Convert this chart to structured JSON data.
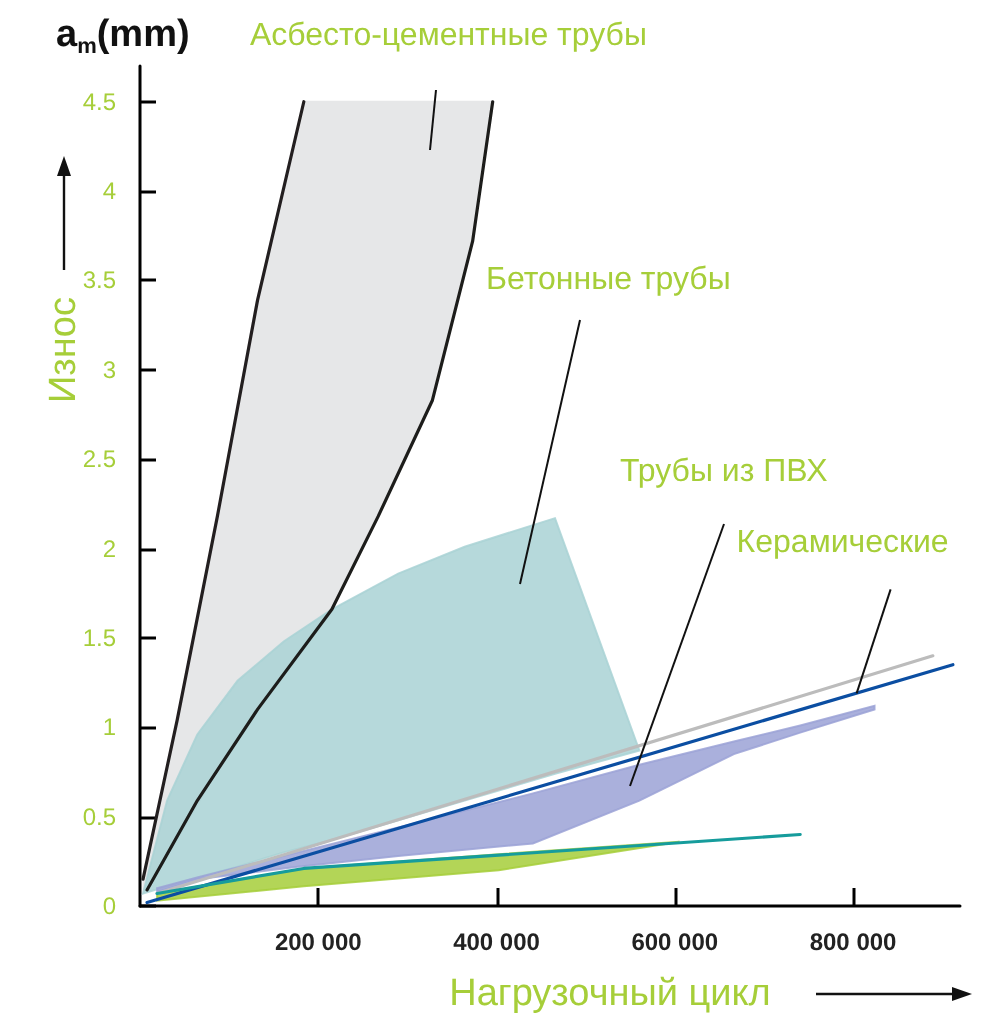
{
  "chart_data": {
    "type": "area",
    "xlabel": "Нагрузочный цикл",
    "ylabel": "Износ",
    "annotations": [
      {
        "text": "a$_{m}$(mm)"
      },
      "Асбесто-цементные трубы",
      "Бетонные трубы",
      "Трубы из ПВХ",
      {
        "text": "Керамические",
        "x": 804000,
        "y": 1.19
      }
    ],
    "xlim": [
      0,
      920000
    ],
    "ylim": [
      0,
      4.7
    ],
    "xticks": [
      {
        "value": 200000,
        "label": "200 000"
      },
      {
        "value": 400000,
        "label": "400 000"
      },
      {
        "value": 600000,
        "label": "600 000"
      },
      {
        "value": 800000,
        "label": "800 000"
      }
    ],
    "yticks": [
      0,
      0.5,
      1,
      1.5,
      2,
      2.5,
      3,
      3.5,
      4,
      4.5
    ],
    "grid": false,
    "series": [
      {
        "color": "#e6e7e8",
        "x": [
          4000,
          40000,
          87000,
          130000,
          184000,
          215000,
          267000,
          328000,
          373000,
          396000
        ],
        "values": [
          null,
          null,
          null,
          null,
          null,
          null,
          null,
          null,
          null,
          null
        ],
        "upper": [
          0.15,
          1.0,
          2.18,
          3.36,
          4.5,
          4.5,
          4.5,
          4.5,
          4.5,
          4.5
        ],
        "lower": [
          0.08,
          0.36,
          0.76,
          1.1,
          1.44,
          1.66,
          2.18,
          2.83,
          3.72,
          4.5
        ]
      },
      {
        "color": "#a9d2d5",
        "x": [
          3400,
          30400,
          64300,
          109400,
          161200,
          215300,
          289700,
          364200,
          465600,
          560300
        ],
        "values": [
          null,
          null,
          null,
          null,
          null,
          null,
          null,
          null,
          null,
          null
        ],
        "upper": [
          0.07,
          0.59,
          0.96,
          1.26,
          1.48,
          1.66,
          1.86,
          2.01,
          2.17,
          0.87
        ],
        "lower": [
          0.07,
          0.11,
          0.16,
          0.22,
          0.3,
          0.37,
          0.48,
          0.59,
          0.74,
          0.87
        ]
      },
      {
        "color": "#9ba2d6",
        "x": [
          19200,
          64300,
          177000,
          289700,
          440800,
          560300,
          666300,
          740700,
          824100
        ],
        "values": [
          null,
          null,
          null,
          null,
          null,
          null,
          null,
          null,
          null
        ],
        "upper": [
          0.1,
          0.16,
          0.3,
          0.44,
          0.63,
          0.79,
          0.92,
          1.01,
          1.12
        ],
        "lower": [
          0.08,
          0.15,
          0.22,
          0.28,
          0.35,
          0.59,
          0.85,
          0.97,
          1.1
        ]
      },
      {
        "color": "#a6ce39",
        "x": [
          19200,
          183800,
          402500,
          605400
        ],
        "values": [
          null,
          null,
          null,
          null
        ],
        "upper": [
          0.07,
          0.21,
          0.29,
          0.36
        ],
        "lower": [
          0.03,
          0.11,
          0.2,
          0.36
        ]
      },
      {
        "type": "line",
        "color": "#bcbcbc",
        "x": [
          19200,
          889500
        ],
        "values": [
          0.07,
          1.4
        ]
      },
      {
        "type": "line",
        "color": "#0b4ea2",
        "x": [
          7900,
          912000
        ],
        "values": [
          0.02,
          1.35
        ]
      },
      {
        "type": "line",
        "color": "#169c9c",
        "x": [
          19200,
          183800,
          740700
        ],
        "values": [
          0.07,
          0.21,
          0.4
        ]
      },
      {
        "type": "line",
        "color": "#231f20",
        "x": [
          3400,
          41700,
          86800,
          131900,
          183800
        ],
        "values": [
          0.15,
          1.04,
          2.18,
          3.39,
          4.5
        ]
      },
      {
        "type": "line",
        "color": "#1d1d1b",
        "x": [
          7900,
          64300,
          131900,
          215300,
          267200,
          328100,
          373200,
          395700
        ],
        "values": [
          0.09,
          0.59,
          1.1,
          1.66,
          2.18,
          2.83,
          3.72,
          4.5
        ]
      }
    ]
  }
}
